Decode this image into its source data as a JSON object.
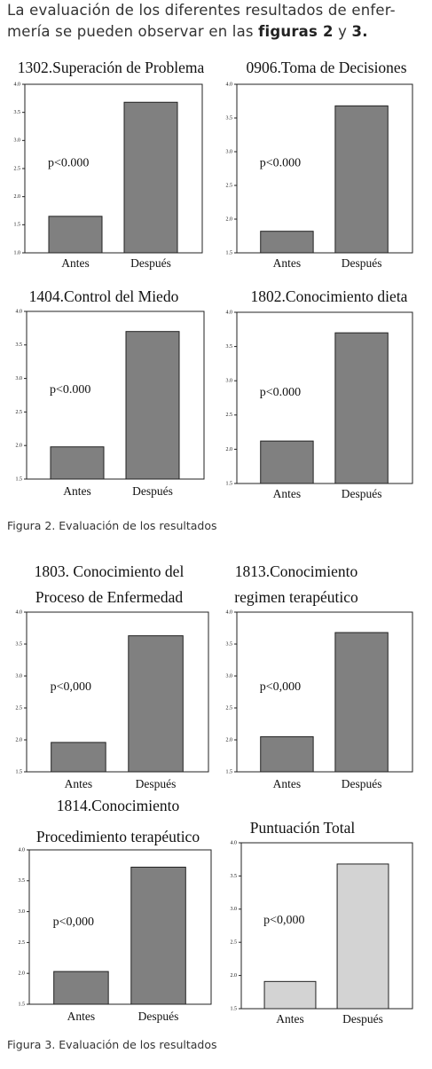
{
  "intro": {
    "line1": "La evaluación de los diferentes resultados de enfer-",
    "line2": "mería se pueden observar en las",
    "bold1": "figuras 2",
    "joiner": "y",
    "bold2": "3."
  },
  "captions": [
    "Figura 2. Evaluación de los resultados",
    "Figura 3. Evaluación de los resultados"
  ],
  "chart_data": [
    {
      "type": "bar",
      "title": [
        "1302.Superación de Problema"
      ],
      "annotation": "p<0.000",
      "categories": [
        "Antes",
        "Después"
      ],
      "values": [
        1.65,
        3.68
      ],
      "color": "#808080",
      "ylim": [
        1,
        4
      ],
      "yticks": [
        {
          "value": 1,
          "label": "1.0"
        },
        1.5,
        {
          "value": 2,
          "label": "2.0"
        },
        2.5,
        {
          "value": 3,
          "label": "3.0"
        },
        3.5,
        {
          "value": 4,
          "label": "4.0"
        }
      ]
    },
    {
      "type": "bar",
      "title": [
        "0906.Toma de Decisiones"
      ],
      "annotation": "p<0.000",
      "categories": [
        "Antes",
        "Después"
      ],
      "values": [
        1.82,
        3.68
      ],
      "color": "#808080",
      "ylim": [
        1.5,
        4
      ],
      "yticks": [
        1.5,
        {
          "value": 2,
          "label": "2.0"
        },
        2.5,
        {
          "value": 3,
          "label": "3.0"
        },
        3.5,
        {
          "value": 4,
          "label": "4.0"
        }
      ]
    },
    {
      "type": "bar",
      "title": [
        "1404.Control del Miedo"
      ],
      "annotation": "p<0.000",
      "categories": [
        "Antes",
        "Después"
      ],
      "values": [
        1.98,
        3.7
      ],
      "color": "#808080",
      "ylim": [
        1.5,
        4
      ],
      "yticks": [
        1.5,
        {
          "value": 2,
          "label": "2.0"
        },
        2.5,
        {
          "value": 3,
          "label": "3.0"
        },
        3.5,
        {
          "value": 4,
          "label": "4.0"
        }
      ]
    },
    {
      "type": "bar",
      "title": [
        "1802.Conocimiento dieta"
      ],
      "annotation": "p<0.000",
      "categories": [
        "Antes",
        "Después"
      ],
      "values": [
        2.12,
        3.7
      ],
      "color": "#808080",
      "ylim": [
        1.5,
        4
      ],
      "yticks": [
        1.5,
        {
          "value": 2,
          "label": "2.0"
        },
        2.5,
        {
          "value": 3,
          "label": "3.0"
        },
        3.5,
        {
          "value": 4,
          "label": "4.0"
        }
      ]
    },
    {
      "type": "bar",
      "title": [
        "1803. Conocimiento del",
        "Proceso de Enfermedad"
      ],
      "annotation": "p<0,000",
      "categories": [
        "Antes",
        "Después"
      ],
      "values": [
        1.96,
        3.63
      ],
      "color": "#808080",
      "ylim": [
        1.5,
        4
      ],
      "yticks": [
        1.5,
        {
          "value": 2,
          "label": "2.0"
        },
        2.5,
        {
          "value": 3,
          "label": "3.0"
        },
        3.5,
        {
          "value": 4,
          "label": "4.0"
        }
      ]
    },
    {
      "type": "bar",
      "title": [
        "1813.Conocimiento",
        "regimen terapéutico"
      ],
      "annotation": "p<0,000",
      "categories": [
        "Antes",
        "Después"
      ],
      "values": [
        2.05,
        3.68
      ],
      "color": "#808080",
      "ylim": [
        1.5,
        4
      ],
      "yticks": [
        1.5,
        {
          "value": 2,
          "label": "2.0"
        },
        2.5,
        {
          "value": 3,
          "label": "3.0"
        },
        3.5,
        {
          "value": 4,
          "label": "4.0"
        }
      ]
    },
    {
      "type": "bar",
      "title": [
        "1814.Conocimiento",
        "Procedimiento terapéutico"
      ],
      "annotation": "p<0,000",
      "categories": [
        "Antes",
        "Después"
      ],
      "values": [
        2.03,
        3.72
      ],
      "color": "#808080",
      "ylim": [
        1.5,
        4
      ],
      "yticks": [
        1.5,
        {
          "value": 2,
          "label": "2.0"
        },
        2.5,
        {
          "value": 3,
          "label": "3.0"
        },
        3.5,
        {
          "value": 4,
          "label": "4.0"
        }
      ]
    },
    {
      "type": "bar",
      "title": [
        "Puntuación Total"
      ],
      "annotation": "p<0,000",
      "categories": [
        "Antes",
        "Después"
      ],
      "values": [
        1.91,
        3.68
      ],
      "color": "#d3d3d3",
      "ylim": [
        1.5,
        4
      ],
      "yticks": [
        1.5,
        {
          "value": 2,
          "label": "2.0"
        },
        2.5,
        {
          "value": 3,
          "label": "3.0"
        },
        3.5,
        {
          "value": 4,
          "label": "4.0"
        }
      ]
    }
  ]
}
